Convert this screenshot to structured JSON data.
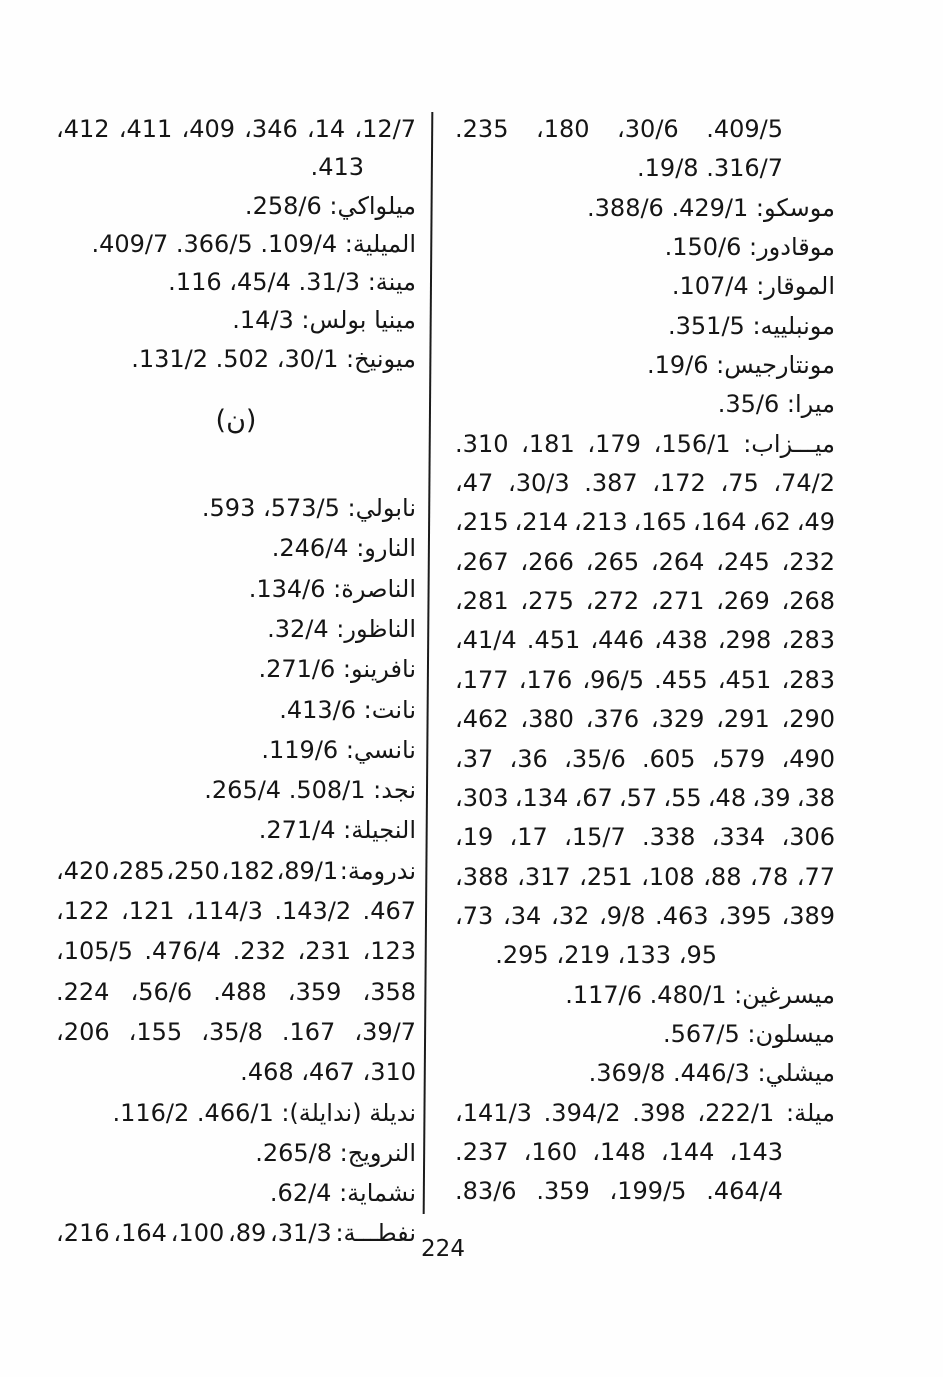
{
  "page": {
    "number": "224",
    "section_header": "(ن)"
  },
  "columns": {
    "right": {
      "lines": [
        {
          "t": "409/5. 30/6، 180، 235.",
          "j": true,
          "ir": 1
        },
        {
          "t": "316/7. 19/8.",
          "ir": 1
        },
        {
          "t": "موسكو: 429/1. 388/6."
        },
        {
          "t": "موقادور: 150/6."
        },
        {
          "t": "الموقار: 107/4."
        },
        {
          "t": "مونبلييه: 351/5."
        },
        {
          "t": "مونتارجيس: 19/6."
        },
        {
          "t": "ميرا: 35/6."
        },
        {
          "t": "ميـــزاب: 156/1، 179، 181، 310.",
          "j": true
        },
        {
          "t": "74/2، 75، 172، 387. 30/3، 47،",
          "j": true
        },
        {
          "t": "49، 62، 164، 165، 213، 214، 215،",
          "j": true
        },
        {
          "t": "232، 245، 264، 265، 266، 267،",
          "j": true
        },
        {
          "t": "268، 269، 271، 272، 275، 281،",
          "j": true
        },
        {
          "t": "283، 298، 438، 446، 451. 41/4،",
          "j": true
        },
        {
          "t": "283، 451، 455. 96/5، 176، 177،",
          "j": true
        },
        {
          "t": "290، 291، 329، 376، 380، 462،",
          "j": true
        },
        {
          "t": "490، 579، 605. 35/6، 36، 37،",
          "j": true
        },
        {
          "t": "38، 39، 48، 55، 57، 67، 134، 303،",
          "j": true
        },
        {
          "t": "306، 334، 338. 15/7، 17، 19،",
          "j": true
        },
        {
          "t": "77، 78، 88، 108، 251، 317، 388،",
          "j": true
        },
        {
          "t": "389، 395، 463. 9/8، 32، 34، 73،",
          "j": true
        },
        {
          "t": "95، 133، 219، 295.",
          "ir": 2
        },
        {
          "t": "ميسرغين: 480/1. 117/6."
        },
        {
          "t": "ميسلون: 567/5."
        },
        {
          "t": "ميشلي: 446/3. 369/8."
        },
        {
          "t": "ميلة: 222/1، 398. 394/2. 141/3،",
          "j": true
        },
        {
          "t": "143، 144، 148، 160، 237.",
          "j": true,
          "ir": 1
        },
        {
          "t": "464/4. 199/5، 359. 83/6.",
          "j": true,
          "ir": 1
        }
      ]
    },
    "left": {
      "lines": [
        {
          "t": "12/7، 14، 346، 409، 411، 412،",
          "j": true
        },
        {
          "t": "413.",
          "ir": 1
        },
        {
          "t": "ميلواكي: 258/6."
        },
        {
          "t": "الميلية: 109/4. 366/5. 409/7."
        },
        {
          "t": "مينة: 31/3. 45/4، 116."
        },
        {
          "t": "مينيا بولس: 14/3."
        },
        {
          "t": "ميونيخ: 30/1، 502. 131/2."
        },
        {
          "type": "header",
          "t": "(ن)"
        },
        {
          "t": "نابولي: 573/5، 593."
        },
        {
          "t": "النارو: 246/4."
        },
        {
          "t": "الناصرة: 134/6."
        },
        {
          "t": "الناظور: 32/4."
        },
        {
          "t": "نافرينو: 271/6."
        },
        {
          "t": "نانت: 413/6."
        },
        {
          "t": "نانسي: 119/6."
        },
        {
          "t": "نجد: 508/1. 265/4."
        },
        {
          "t": "النجيلة: 271/4."
        },
        {
          "t": "ندرومة: 89/1، 182، 250، 285، 420،",
          "j": true
        },
        {
          "t": "467. 143/2. 114/3، 121، 122،",
          "j": true
        },
        {
          "t": "123، 231، 232. 476/4. 105/5،",
          "j": true
        },
        {
          "t": "358، 359، 488. 56/6، 224.",
          "j": true
        },
        {
          "t": "39/7، 167. 35/8، 155، 206،",
          "j": true
        },
        {
          "t": "310، 467، 468."
        },
        {
          "t": "نديلة (ندايلة): 466/1. 116/2."
        },
        {
          "t": "النرويج: 265/8."
        },
        {
          "t": "نشماية: 62/4."
        },
        {
          "t": "نفطـــة: 31/3، 89، 100، 164، 216،",
          "j": true
        }
      ]
    }
  }
}
